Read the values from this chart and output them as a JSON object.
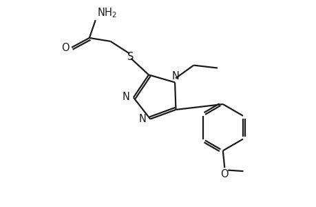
{
  "bg_color": "#ffffff",
  "line_color": "#1a1a1a",
  "line_width": 1.6,
  "font_size": 10.5,
  "figsize": [
    4.6,
    3.0
  ],
  "dpi": 100,
  "xlim": [
    0,
    9.2
  ],
  "ylim": [
    0,
    6.0
  ]
}
